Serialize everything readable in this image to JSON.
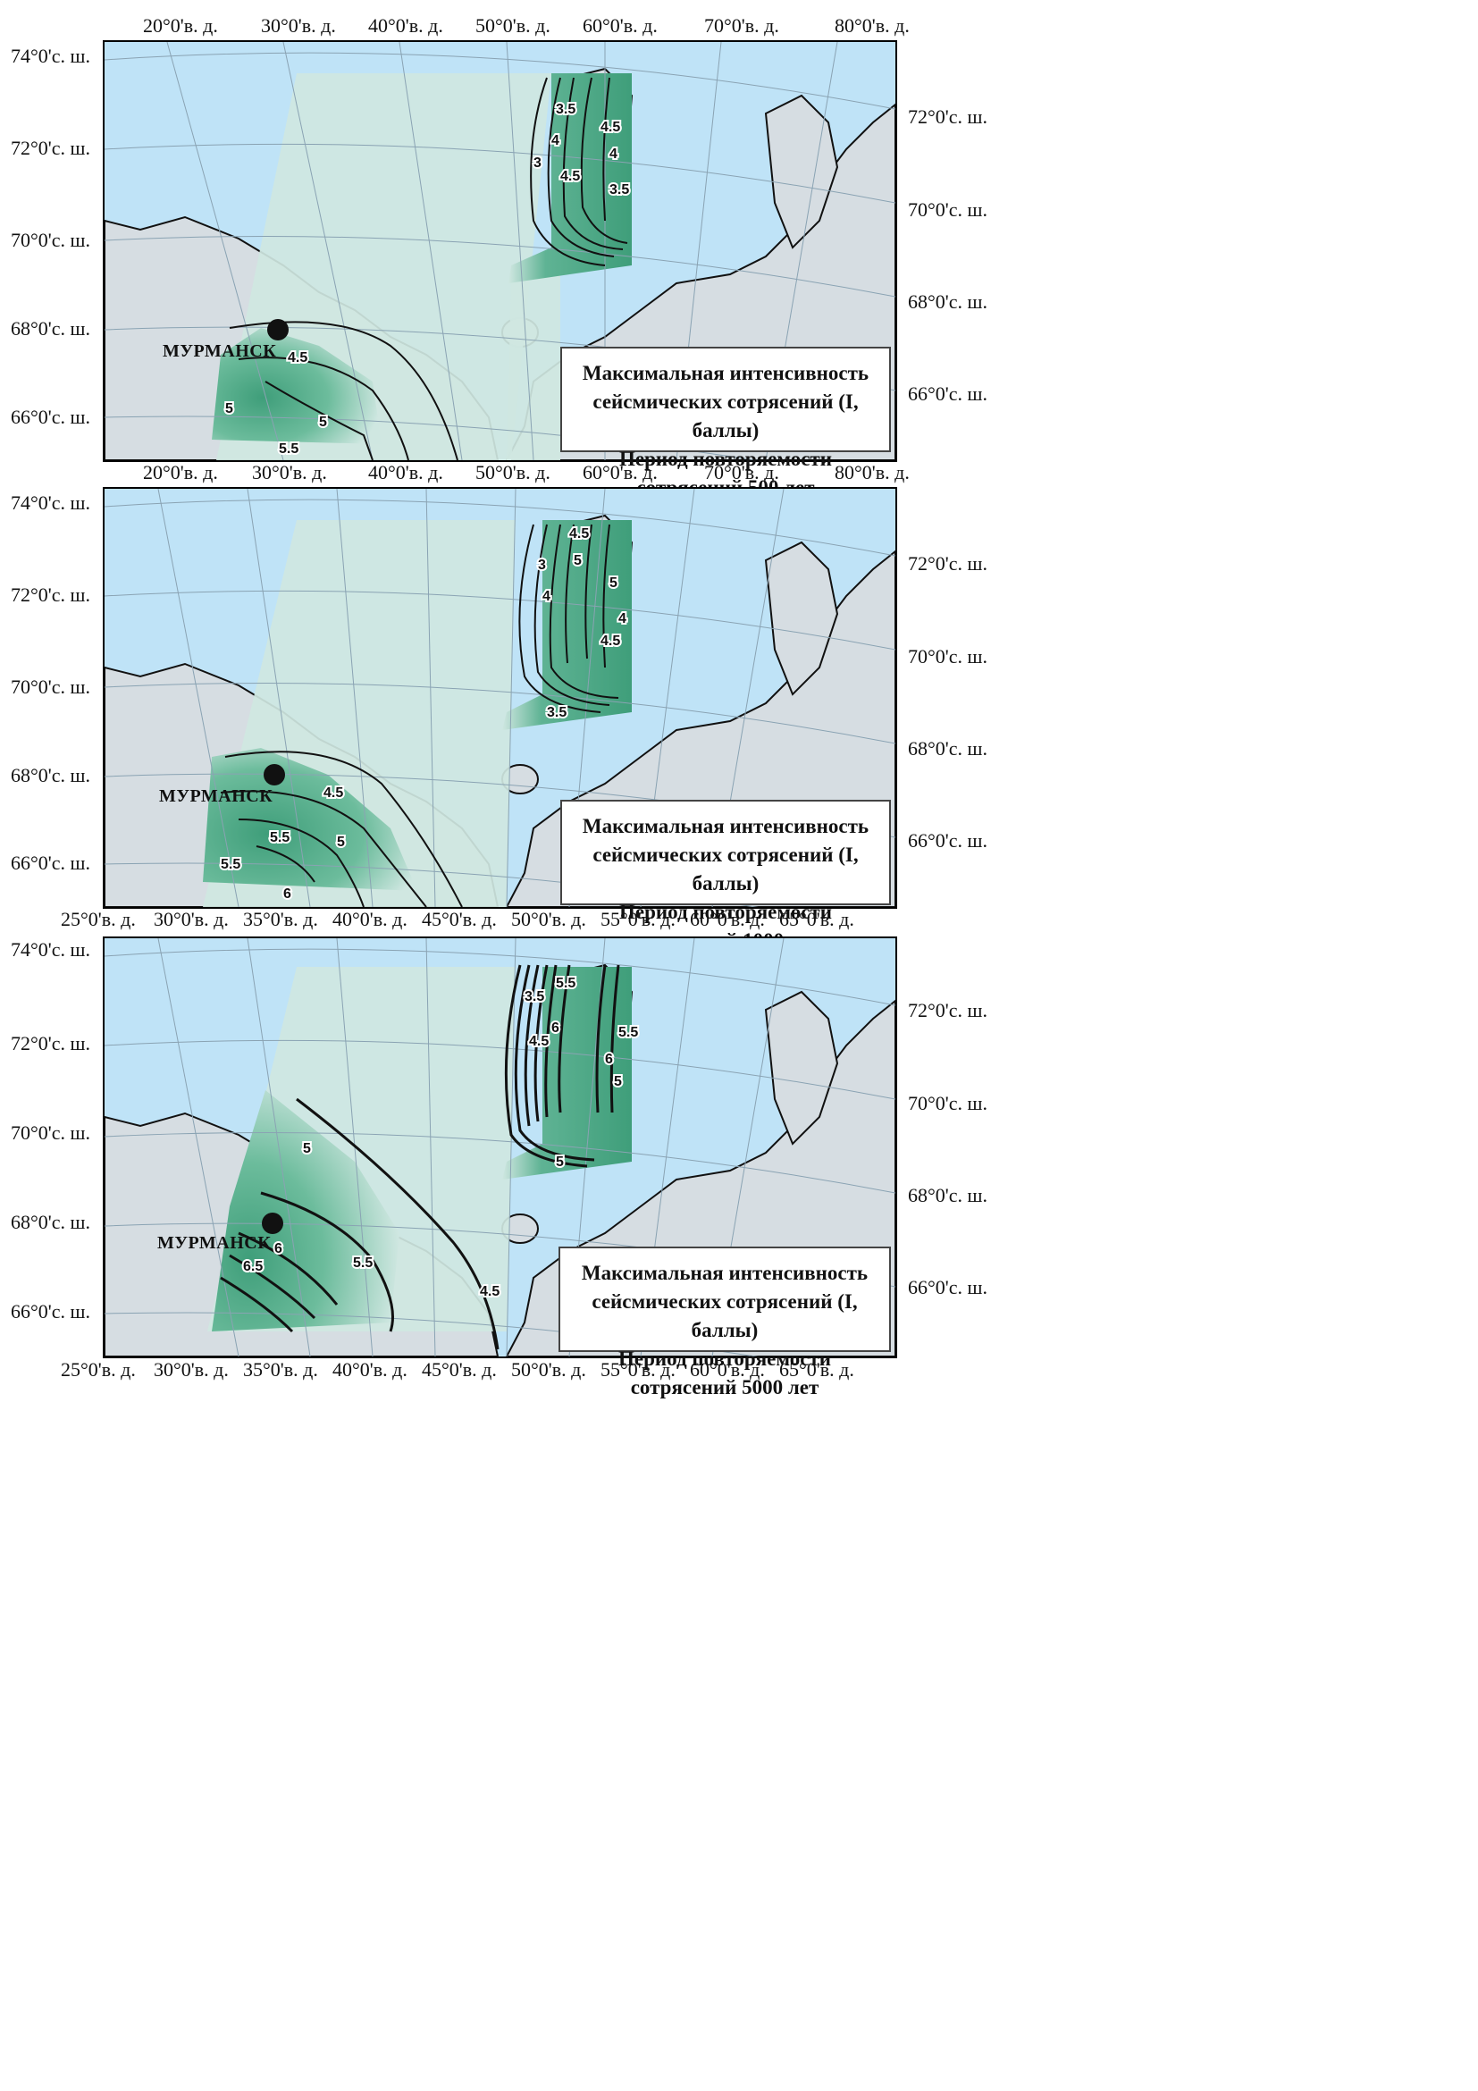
{
  "city_label": "МУРМАНСК",
  "panels": [
    {
      "top_lon_labels": [
        "20°0'в. д.",
        "30°0'в. д.",
        "40°0'в. д.",
        "50°0'в. д.",
        "60°0'в. д.",
        "70°0'в. д.",
        "80°0'в. д."
      ],
      "bottom_lon_labels": [
        "20°0'в. д.",
        "30°0'в. д.",
        "40°0'в. д.",
        "50°0'в. д.",
        "60°0'в. д.",
        "70°0'в. д.",
        "80°0'в. д."
      ],
      "left_lat_labels": [
        "74°0'с. ш.",
        "72°0'с. ш.",
        "70°0'с. ш.",
        "68°0'с. ш.",
        "66°0'с. ш."
      ],
      "right_lat_labels": [
        "72°0'с. ш.",
        "70°0'с. ш.",
        "68°0'с. ш.",
        "66°0'с. ш."
      ],
      "legend": [
        "Максимальная интенсивность",
        "сейсмических сотрясений (I, баллы)",
        "Период повторяемости",
        "сотрясений 500 лет"
      ],
      "contour_labels": [
        "4.5",
        "5",
        "5",
        "5.5",
        "3",
        "3.5",
        "4",
        "4.5",
        "4.5",
        "4",
        "3.5"
      ]
    },
    {
      "top_lon_labels": [],
      "bottom_lon_labels": [
        "25°0'в. д.",
        "30°0'в. д.",
        "35°0'в. д.",
        "40°0'в. д.",
        "45°0'в. д.",
        "50°0'в. д.",
        "55°0'в. д.",
        "60°0'в. д.",
        "65°0'в. д."
      ],
      "left_lat_labels": [
        "74°0'с. ш.",
        "72°0'с. ш.",
        "70°0'с. ш.",
        "68°0'с. ш.",
        "66°0'с. ш."
      ],
      "right_lat_labels": [
        "72°0'с. ш.",
        "70°0'с. ш.",
        "68°0'с. ш.",
        "66°0'с. ш."
      ],
      "legend": [
        "Максимальная интенсивность",
        "сейсмических сотрясений (I, баллы)",
        "Период повторяемости",
        "сотрясений 1000 лет"
      ],
      "contour_labels": [
        "4.5",
        "5",
        "5.5",
        "5.5",
        "6",
        "3",
        "4",
        "4.5",
        "5",
        "5",
        "4.5",
        "4",
        "3.5"
      ]
    },
    {
      "top_lon_labels": [],
      "bottom_lon_labels": [
        "25°0'в. д.",
        "30°0'в. д.",
        "35°0'в. д.",
        "40°0'в. д.",
        "45°0'в. д.",
        "50°0'в. д.",
        "55°0'в. д.",
        "60°0'в. д.",
        "65°0'в. д."
      ],
      "left_lat_labels": [
        "74°0'с. ш.",
        "72°0'с. ш.",
        "70°0'с. ш.",
        "68°0'с. ш.",
        "66°0'с. ш."
      ],
      "right_lat_labels": [
        "72°0'с. ш.",
        "70°0'с. ш.",
        "68°0'с. ш.",
        "66°0'с. ш."
      ],
      "legend": [
        "Максимальная интенсивность",
        "сейсмических сотрясений (I, баллы)",
        "Период повторяемости",
        "сотрясений 5000 лет"
      ],
      "contour_labels": [
        "5",
        "6",
        "6.5",
        "5.5",
        "4.5",
        "3.5",
        "4.5",
        "5.5",
        "6",
        "5.5",
        "6",
        "5",
        "5"
      ]
    }
  ],
  "colors": {
    "sea": "#bfe3f7",
    "land": "#d6dde2",
    "zone_light": "#cfe7e1",
    "zone_green": "#5fb394",
    "zone_dark": "#3f9e7a",
    "line": "#111111",
    "city_marker": "#111111"
  }
}
